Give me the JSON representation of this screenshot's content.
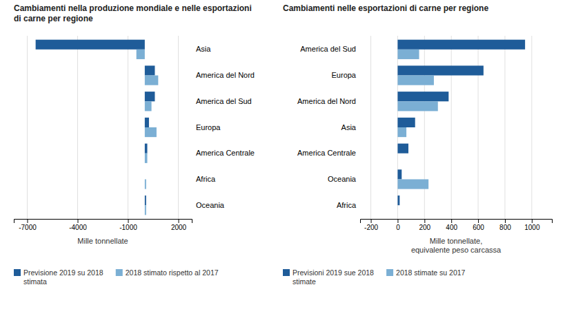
{
  "chart_data": [
    {
      "type": "bar",
      "orientation": "horizontal",
      "title": "Cambiamenti nella produzione mondiale e nelle esportazioni\ndi carne per regione",
      "categories": [
        "Asia",
        "America del Nord",
        "America del Sud",
        "Europa",
        "America Centrale",
        "Africa",
        "Oceania"
      ],
      "series": [
        {
          "name": "Previsione 2019 su 2018\nstimata",
          "color": "#1F5C99",
          "values": [
            -6500,
            600,
            600,
            250,
            150,
            0,
            80
          ]
        },
        {
          "name": "2018 stimato rispetto al 2017",
          "color": "#7BAFD4",
          "values": [
            -500,
            800,
            400,
            700,
            150,
            80,
            80
          ]
        }
      ],
      "xlabel": "Mille tonnellate",
      "xlim": [
        -7800,
        2800
      ],
      "xticks": [
        -7000,
        -4000,
        -1000,
        2000
      ],
      "grid": true,
      "legend": "lower left"
    },
    {
      "type": "bar",
      "orientation": "horizontal",
      "title": "Cambiamenti nelle esportazioni di carne per regione",
      "categories": [
        "America del Sud",
        "Europa",
        "America del Nord",
        "Asia",
        "America Centrale",
        "Oceania",
        "Africa"
      ],
      "series": [
        {
          "name": "Previsioni 2019 sue 2018\nstimate",
          "color": "#1F5C99",
          "values": [
            950,
            640,
            380,
            130,
            80,
            30,
            15
          ]
        },
        {
          "name": "2018 stimate su 2017",
          "color": "#7BAFD4",
          "values": [
            160,
            270,
            300,
            65,
            0,
            230,
            0
          ]
        }
      ],
      "xlabel": "Mille tonnellate,\nequivalente peso carcassa",
      "xlim": [
        -280,
        1150
      ],
      "xticks": [
        -200,
        0,
        200,
        400,
        600,
        800,
        1000
      ],
      "grid": true,
      "legend": "lower left"
    }
  ]
}
